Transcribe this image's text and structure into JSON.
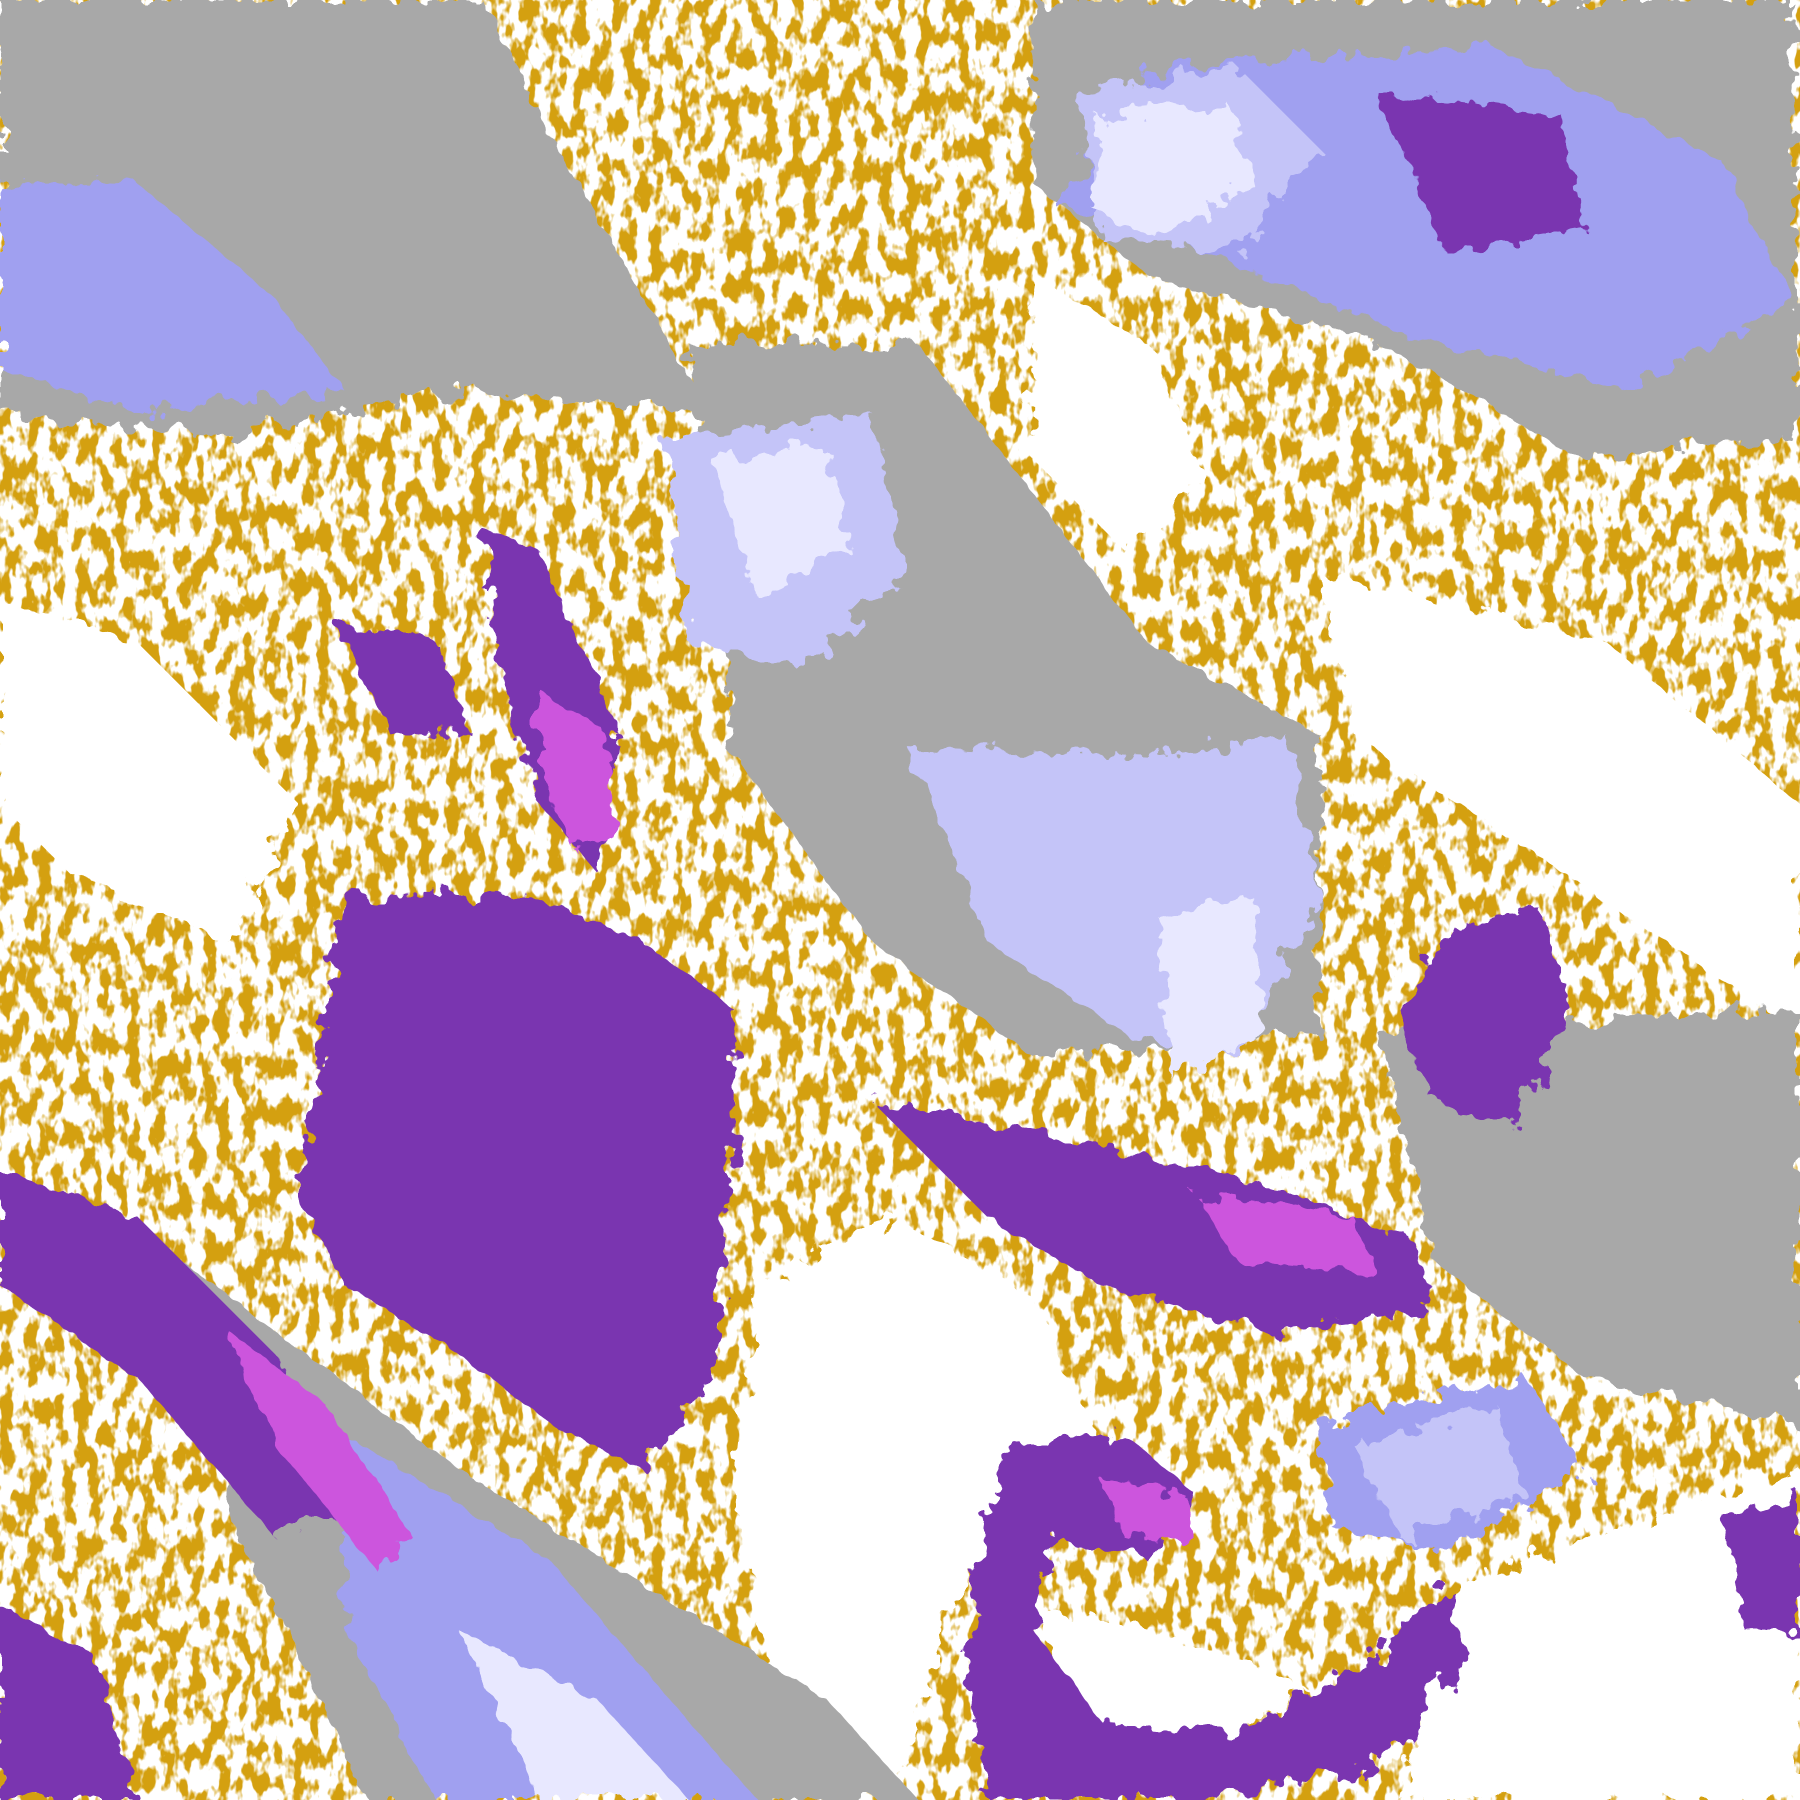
{
  "map": {
    "kind": "satellite cloud classification image",
    "colors": {
      "background": "#ffffff",
      "gold": "#d4a010",
      "purple": "#7a35b0",
      "magenta": "#cc55dd",
      "lavender": "#a0a0f0",
      "pale_lavender": "#e8e8ff",
      "light_lavender": "#c4c4f8",
      "gray": "#a8a8a8"
    }
  }
}
